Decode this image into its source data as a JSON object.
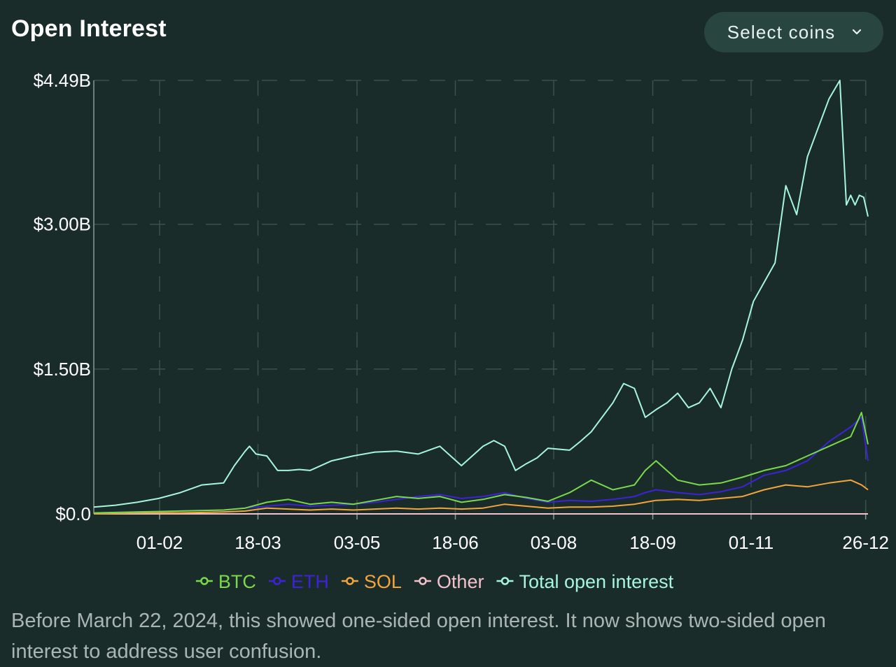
{
  "header": {
    "title": "Open Interest",
    "select_label": "Select coins"
  },
  "footnote": "Before March 22, 2024, this showed one-sided open interest. It now shows two-sided open interest to address user confusion.",
  "colors": {
    "BTC": "#7ad94b",
    "ETH": "#3d22d9",
    "SOL": "#f2a53a",
    "Other": "#f4c0cc",
    "Total open interest": "#a6f5dc"
  },
  "chart_data": {
    "type": "line",
    "x_tick_labels": [
      "01-02",
      "18-03",
      "03-05",
      "18-06",
      "03-08",
      "18-09",
      "01-11",
      "26-12"
    ],
    "y_tick_labels": [
      "$0.0",
      "$1.50B",
      "$3.00B",
      "$4.49B"
    ],
    "y_ticks": [
      0,
      1.5,
      3.0,
      4.49
    ],
    "ylim": [
      0,
      4.49
    ],
    "y_unit": "B USD",
    "grid": true,
    "legend_position": "bottom",
    "series": [
      {
        "name": "BTC",
        "x": [
          0,
          20,
          40,
          60,
          70,
          80,
          90,
          100,
          110,
          120,
          130,
          140,
          150,
          160,
          170,
          180,
          190,
          200,
          210,
          220,
          230,
          240,
          250,
          255,
          260,
          270,
          280,
          290,
          300,
          310,
          320,
          330,
          340,
          350,
          355,
          358
        ],
        "y": [
          0.01,
          0.02,
          0.03,
          0.04,
          0.06,
          0.12,
          0.15,
          0.1,
          0.12,
          0.1,
          0.14,
          0.18,
          0.16,
          0.18,
          0.12,
          0.15,
          0.2,
          0.17,
          0.13,
          0.22,
          0.35,
          0.25,
          0.3,
          0.45,
          0.55,
          0.35,
          0.3,
          0.32,
          0.38,
          0.45,
          0.5,
          0.6,
          0.7,
          0.8,
          1.05,
          0.72
        ]
      },
      {
        "name": "ETH",
        "x": [
          0,
          20,
          40,
          60,
          70,
          80,
          90,
          100,
          110,
          120,
          130,
          140,
          150,
          160,
          170,
          180,
          190,
          200,
          210,
          220,
          230,
          240,
          250,
          255,
          260,
          270,
          280,
          290,
          300,
          310,
          320,
          330,
          340,
          350,
          355,
          358
        ],
        "y": [
          0.01,
          0.02,
          0.03,
          0.04,
          0.06,
          0.08,
          0.1,
          0.08,
          0.09,
          0.1,
          0.12,
          0.15,
          0.18,
          0.2,
          0.16,
          0.18,
          0.22,
          0.16,
          0.12,
          0.14,
          0.13,
          0.15,
          0.18,
          0.22,
          0.25,
          0.22,
          0.2,
          0.23,
          0.28,
          0.4,
          0.45,
          0.55,
          0.75,
          0.9,
          1.0,
          0.55
        ]
      },
      {
        "name": "SOL",
        "x": [
          0,
          20,
          40,
          60,
          70,
          80,
          90,
          100,
          110,
          120,
          130,
          140,
          150,
          160,
          170,
          180,
          190,
          200,
          210,
          220,
          230,
          240,
          250,
          255,
          260,
          270,
          280,
          290,
          300,
          310,
          320,
          330,
          340,
          350,
          355,
          358
        ],
        "y": [
          0.0,
          0.01,
          0.01,
          0.02,
          0.03,
          0.06,
          0.05,
          0.04,
          0.05,
          0.04,
          0.05,
          0.06,
          0.05,
          0.06,
          0.05,
          0.06,
          0.1,
          0.08,
          0.06,
          0.07,
          0.07,
          0.08,
          0.1,
          0.12,
          0.14,
          0.15,
          0.14,
          0.16,
          0.18,
          0.25,
          0.3,
          0.28,
          0.32,
          0.35,
          0.3,
          0.25
        ]
      },
      {
        "name": "Other",
        "x": [
          0,
          100,
          200,
          300,
          358
        ],
        "y": [
          0.0,
          0.0,
          0.0,
          0.0,
          0.0
        ]
      },
      {
        "name": "Total open interest",
        "x": [
          0,
          10,
          20,
          30,
          40,
          50,
          60,
          65,
          70,
          72,
          75,
          80,
          85,
          90,
          95,
          100,
          110,
          120,
          130,
          140,
          150,
          160,
          170,
          180,
          185,
          190,
          195,
          200,
          205,
          210,
          220,
          225,
          230,
          240,
          245,
          250,
          255,
          260,
          265,
          270,
          275,
          280,
          285,
          290,
          295,
          300,
          305,
          310,
          315,
          320,
          325,
          330,
          335,
          340,
          345,
          348,
          350,
          352,
          354,
          356,
          358
        ],
        "y": [
          0.07,
          0.09,
          0.12,
          0.16,
          0.22,
          0.3,
          0.32,
          0.5,
          0.65,
          0.7,
          0.62,
          0.6,
          0.45,
          0.45,
          0.46,
          0.45,
          0.55,
          0.6,
          0.64,
          0.65,
          0.62,
          0.7,
          0.5,
          0.7,
          0.76,
          0.7,
          0.45,
          0.52,
          0.58,
          0.68,
          0.66,
          0.75,
          0.85,
          1.15,
          1.35,
          1.3,
          1.0,
          1.08,
          1.15,
          1.25,
          1.1,
          1.15,
          1.3,
          1.1,
          1.5,
          1.8,
          2.2,
          2.4,
          2.6,
          3.4,
          3.1,
          3.7,
          4.0,
          4.3,
          4.49,
          3.2,
          3.3,
          3.2,
          3.3,
          3.28,
          3.08
        ]
      }
    ]
  }
}
